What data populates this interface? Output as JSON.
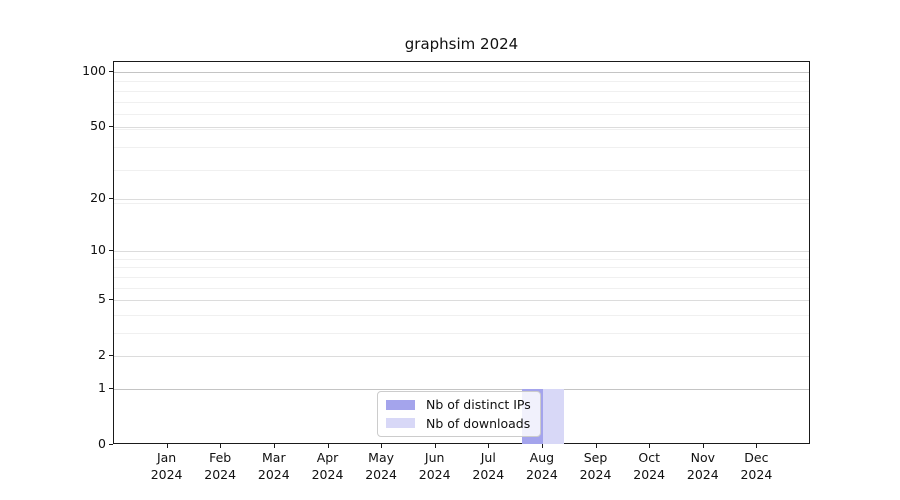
{
  "title": "graphsim 2024",
  "chart_data": {
    "type": "bar",
    "title": "graphsim 2024",
    "categories": [
      "Jan 2024",
      "Feb 2024",
      "Mar 2024",
      "Apr 2024",
      "May 2024",
      "Jun 2024",
      "Jul 2024",
      "Aug 2024",
      "Sep 2024",
      "Oct 2024",
      "Nov 2024",
      "Dec 2024"
    ],
    "series": [
      {
        "name": "Nb of distinct IPs",
        "color": "#a4a4ec",
        "values": [
          0,
          0,
          0,
          0,
          0,
          0,
          0,
          1,
          0,
          0,
          0,
          0
        ]
      },
      {
        "name": "Nb of downloads",
        "color": "#d8d8f7",
        "values": [
          0,
          0,
          0,
          0,
          0,
          0,
          0,
          1,
          0,
          0,
          0,
          0
        ]
      }
    ],
    "xlabel": "",
    "ylabel": "",
    "yscale": "log1p",
    "ylim": [
      0,
      112
    ],
    "y_major_ticks": [
      100,
      50,
      20,
      10,
      5,
      2,
      1,
      0
    ],
    "y_minor_gridlines": [
      3,
      4,
      6,
      7,
      8,
      9,
      19,
      29,
      39,
      49,
      59,
      69,
      79,
      89
    ],
    "grid": "horizontal major and minor, light gray",
    "legend_position": "inside lower center"
  },
  "legend": {
    "entries": [
      "Nb of distinct IPs",
      "Nb of downloads"
    ]
  }
}
